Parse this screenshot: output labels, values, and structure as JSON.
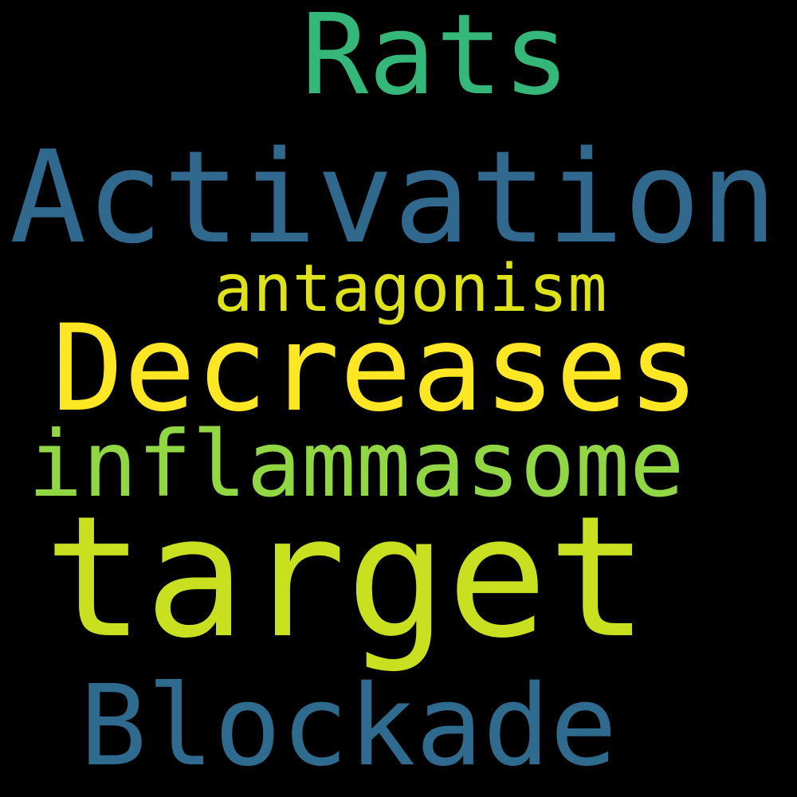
{
  "background": "#000000",
  "words": {
    "rats": {
      "text": "Rats",
      "color": "#35b779"
    },
    "activation": {
      "text": "Activation",
      "color": "#31688e"
    },
    "antagonism": {
      "text": "antagonism",
      "color": "#dde318"
    },
    "decreases": {
      "text": "Decreases",
      "color": "#fde725"
    },
    "inflammasome": {
      "text": "inflammasome",
      "color": "#90d743"
    },
    "target": {
      "text": "target",
      "color": "#c8e020"
    },
    "blockade": {
      "text": "Blockade",
      "color": "#2f6b8e"
    }
  }
}
